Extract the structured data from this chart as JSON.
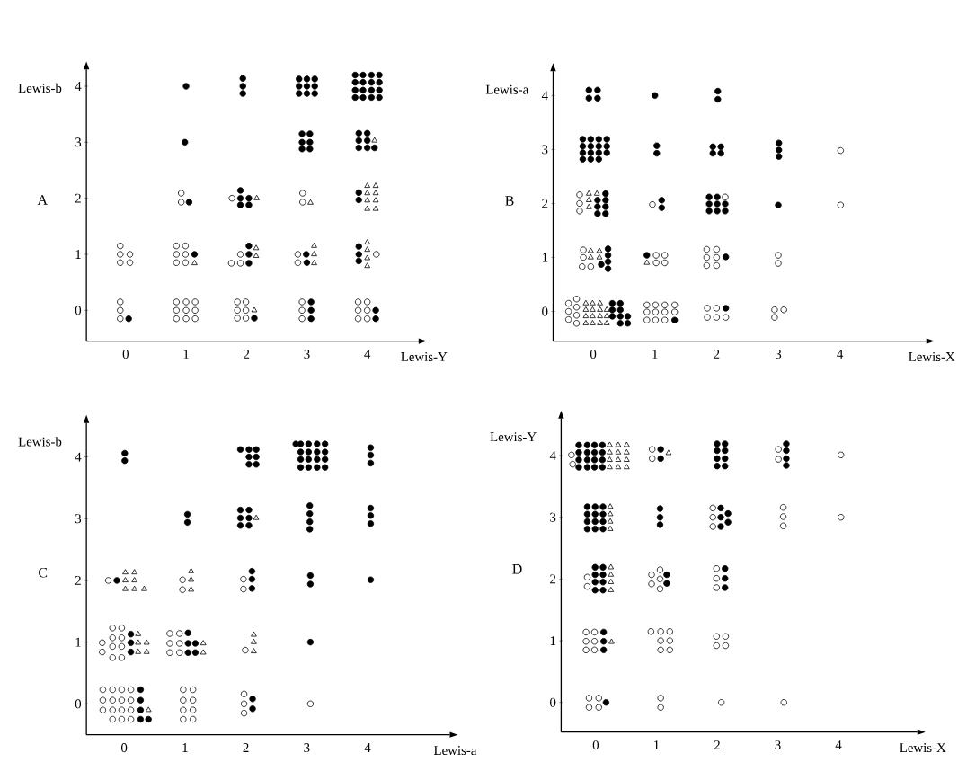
{
  "chart_data": [
    {
      "type": "scatter",
      "xlabel": "Lewis-Y",
      "ylabel": "Lewis-b",
      "annotations": [
        "A"
      ],
      "xlim": [
        -0.65,
        4.85
      ],
      "ylim": [
        -0.55,
        4.3
      ],
      "xticks": [
        0,
        1,
        2,
        3,
        4
      ],
      "yticks": [
        0,
        1,
        2,
        3,
        4
      ],
      "series": [
        {
          "marker": "circle",
          "color": "#ffffff",
          "x": [
            -0.09,
            -0.09,
            -0.09,
            -0.09,
            -0.09,
            0.07,
            -0.09,
            0.07,
            0.84,
            1,
            1.15,
            0.84,
            1,
            1.15,
            0.84,
            1,
            1.15,
            0.84,
            0.99,
            0.84,
            0.99,
            0.84,
            0.99,
            0.92,
            0.92,
            1.85,
            1.99,
            1.85,
            1.99,
            1.85,
            1.99,
            1.9,
            1.75,
            1.9,
            1.76,
            2.92,
            2.92,
            2.92,
            2.85,
            2.85,
            2.93,
            2.93,
            3.85,
            4,
            3.85,
            4,
            3.85,
            4,
            4.15
          ],
          "values": [
            0.15,
            0,
            -0.15,
            1.15,
            1,
            1,
            0.85,
            0.85,
            0.15,
            0.15,
            0.15,
            0,
            0,
            0,
            -0.15,
            -0.15,
            -0.15,
            1.15,
            1.15,
            1,
            1,
            0.85,
            0.85,
            2.09,
            1.93,
            0.15,
            0.15,
            0,
            0,
            -0.14,
            -0.14,
            1,
            0.84,
            0.84,
            2,
            0.15,
            0,
            -0.15,
            1,
            0.85,
            2.09,
            1.93,
            0.15,
            0.15,
            0,
            0,
            -0.15,
            -0.15,
            1
          ]
        },
        {
          "marker": "circle",
          "color": "#000000",
          "x": [
            0.05,
            1.14,
            1.05,
            0.98,
            1,
            2.13,
            2.04,
            2.04,
            2.04,
            1.9,
            1.9,
            2.04,
            1.9,
            2.04,
            1.94,
            1.94,
            1.94,
            3.07,
            3.07,
            3.07,
            2.99,
            3,
            2.92,
            3.05,
            2.92,
            3.05,
            2.92,
            3.05,
            2.87,
            3,
            3.13,
            2.87,
            3,
            3.13,
            2.87,
            3,
            3.13,
            4.14,
            4.14,
            3.86,
            3.86,
            3.86,
            3.86,
            3.86,
            3.86,
            4,
            3.86,
            4,
            3.86,
            4,
            4.12,
            3.8,
            3.93,
            4.07,
            4.2,
            3.8,
            3.93,
            4.07,
            4.2,
            3.8,
            3.93,
            4.07,
            4.2,
            3.8,
            3.93,
            4.07,
            4.2
          ],
          "values": [
            -0.15,
            1,
            1.93,
            3,
            4,
            -0.14,
            1.15,
            1,
            0.84,
            2.14,
            2,
            2,
            1.88,
            1.88,
            4.14,
            4,
            3.87,
            0.15,
            0,
            -0.15,
            1,
            0.85,
            3.15,
            3.15,
            3,
            3,
            2.88,
            2.88,
            4.13,
            4.13,
            4.13,
            4,
            4,
            4,
            3.87,
            3.87,
            3.87,
            0,
            -0.15,
            1.14,
            1,
            0.88,
            2.1,
            1.97,
            3.16,
            3.16,
            3.03,
            3.03,
            2.9,
            2.9,
            2.9,
            4.2,
            4.2,
            4.2,
            4.2,
            4.07,
            4.07,
            4.07,
            4.07,
            3.93,
            3.93,
            3.93,
            3.93,
            3.8,
            3.8,
            3.8,
            3.8
          ]
        },
        {
          "marker": "triangle",
          "color": "#ffffff",
          "x": [
            1.14,
            2.13,
            2.16,
            2.16,
            2.17,
            3.12,
            3.12,
            3.12,
            3.06,
            4,
            4,
            4,
            4,
            4,
            4.14,
            4,
            4.14,
            4,
            4.14,
            4,
            4.14,
            4.12
          ],
          "values": [
            0.84,
            0,
            1.11,
            0.97,
            2,
            1.15,
            1,
            0.84,
            1.92,
            1.21,
            1.08,
            0.93,
            0.79,
            2.22,
            2.22,
            2.09,
            2.09,
            1.96,
            1.96,
            1.81,
            1.81,
            3.03
          ]
        }
      ]
    },
    {
      "type": "scatter",
      "xlabel": "Lewis-X",
      "ylabel": "Lewis-a",
      "annotations": [
        "B"
      ],
      "xlim": [
        -0.65,
        5.4
      ],
      "ylim": [
        -0.55,
        4.45
      ],
      "xticks": [
        0,
        1,
        2,
        3,
        4
      ],
      "yticks": [
        0,
        1,
        2,
        3,
        4
      ],
      "series": [
        {
          "marker": "circle",
          "color": "#ffffff",
          "x": [
            -0.4,
            -0.27,
            -0.4,
            -0.27,
            -0.4,
            -0.27,
            -0.27,
            0.87,
            1.01,
            1.16,
            1.32,
            0.87,
            1.01,
            1.16,
            1.32,
            0.87,
            1.01,
            1.16,
            1.85,
            2,
            1.85,
            2,
            2.15,
            2.94,
            2.94,
            3.09,
            -0.16,
            -0.16,
            -0.18,
            -0.04,
            1.02,
            1.16,
            1.02,
            1.16,
            1.84,
            2,
            1.84,
            2,
            1.84,
            2,
            3,
            3,
            -0.22,
            -0.22,
            -0.22,
            0.96,
            2.14,
            4.01,
            4.01
          ],
          "values": [
            0.15,
            0.23,
            0,
            0.08,
            -0.15,
            -0.07,
            -0.22,
            0.12,
            0.12,
            0.12,
            0.12,
            -0.01,
            -0.01,
            -0.01,
            -0.01,
            -0.16,
            -0.16,
            -0.16,
            0.06,
            0.06,
            -0.11,
            -0.11,
            -0.11,
            -0.11,
            0.03,
            0.03,
            1.14,
            1,
            0.83,
            0.83,
            1.04,
            1.04,
            0.9,
            0.9,
            1.15,
            1.15,
            1,
            1,
            0.85,
            0.85,
            1.04,
            0.89,
            2.16,
            2,
            1.86,
            1.98,
            2.12,
            1.97,
            2.98
          ]
        },
        {
          "marker": "circle",
          "color": "#000000",
          "x": [
            0.31,
            0.44,
            0.31,
            0.44,
            0.31,
            0.44,
            0.56,
            0.44,
            0.56,
            1.32,
            2.15,
            0.24,
            0.24,
            0.13,
            0.24,
            0.24,
            0.87,
            2.15,
            0.2,
            0.07,
            0.2,
            0.07,
            0.2,
            0.07,
            0.2,
            1.11,
            1.11,
            1.88,
            2.01,
            1.88,
            2.01,
            2.14,
            1.88,
            2.01,
            2.14,
            3,
            -0.17,
            -0.04,
            0.09,
            0.22,
            -0.17,
            -0.04,
            0.09,
            0.22,
            -0.17,
            -0.04,
            0.09,
            0.22,
            -0.17,
            -0.04,
            0.09,
            1.03,
            1.03,
            1.94,
            2.07,
            1.94,
            2.07,
            3.01,
            3.01,
            3.01,
            -0.07,
            0.07,
            -0.07,
            0.07,
            1,
            2.02,
            2.02
          ],
          "values": [
            0.15,
            0.15,
            0.03,
            0.03,
            -0.09,
            -0.09,
            -0.09,
            -0.22,
            -0.22,
            -0.16,
            0.06,
            1.16,
            1.04,
            0.87,
            0.92,
            0.79,
            1.04,
            1.01,
            2.18,
            2.06,
            2.06,
            1.94,
            1.94,
            1.81,
            1.81,
            2.06,
            1.92,
            2.12,
            2.12,
            1.99,
            1.99,
            1.99,
            1.86,
            1.86,
            1.86,
            1.97,
            3.19,
            3.19,
            3.19,
            3.19,
            3.06,
            3.06,
            3.06,
            3.06,
            2.94,
            2.94,
            2.94,
            2.94,
            2.82,
            2.82,
            2.82,
            3.07,
            2.93,
            3.05,
            3.05,
            2.93,
            2.93,
            3.12,
            2.99,
            2.87,
            4.1,
            4.1,
            3.95,
            3.95,
            4,
            4.08,
            3.93
          ]
        },
        {
          "marker": "triangle",
          "color": "#ffffff",
          "x": [
            -0.12,
            -0.01,
            0.11,
            -0.12,
            -0.01,
            0.11,
            0.22,
            -0.12,
            -0.01,
            0.11,
            0.22,
            -0.12,
            -0.01,
            0.11,
            0.22,
            -0.04,
            0.1,
            -0.04,
            0.1,
            0.87,
            -0.07,
            0.06,
            -0.07,
            -0.07
          ],
          "values": [
            0.15,
            0.15,
            0.15,
            0.03,
            0.03,
            0.03,
            0.03,
            -0.09,
            -0.09,
            -0.09,
            -0.09,
            -0.22,
            -0.22,
            -0.22,
            -0.22,
            1.12,
            1.12,
            1,
            1,
            0.9,
            2.18,
            2.18,
            2.06,
            1.93
          ]
        }
      ]
    },
    {
      "type": "scatter",
      "xlabel": "Lewis-a",
      "ylabel": "Lewis-b",
      "annotations": [
        "C"
      ],
      "xlim": [
        -0.62,
        5.35
      ],
      "ylim": [
        -0.5,
        4.55
      ],
      "xticks": [
        0,
        1,
        2,
        3,
        4
      ],
      "yticks": [
        0,
        1,
        2,
        3,
        4
      ],
      "series": [
        {
          "marker": "circle",
          "color": "#ffffff",
          "x": [
            -0.35,
            -0.19,
            -0.04,
            0.11,
            -0.35,
            -0.19,
            -0.04,
            0.11,
            -0.35,
            -0.19,
            -0.04,
            0.11,
            -0.19,
            -0.04,
            0.11,
            0.97,
            1.13,
            0.97,
            1.13,
            0.97,
            1.13,
            0.97,
            1.13,
            1.97,
            1.97,
            1.97,
            3.06,
            -0.19,
            -0.04,
            -0.19,
            -0.04,
            -0.36,
            -0.19,
            -0.04,
            -0.36,
            -0.19,
            -0.04,
            0.75,
            0.91,
            0.75,
            0.91,
            0.75,
            0.91,
            1.99,
            -0.26,
            0.96,
            0.96,
            1.96,
            1.96
          ],
          "values": [
            0.23,
            0.23,
            0.23,
            0.23,
            0.06,
            0.06,
            0.06,
            0.06,
            -0.1,
            -0.1,
            -0.1,
            -0.1,
            -0.25,
            -0.25,
            -0.25,
            0.23,
            0.23,
            0.06,
            0.06,
            -0.1,
            -0.1,
            -0.25,
            -0.25,
            0.16,
            0,
            -0.15,
            0,
            1.23,
            1.23,
            1.07,
            1.07,
            0.99,
            0.93,
            0.93,
            0.84,
            0.75,
            0.75,
            1.14,
            1.14,
            0.98,
            0.98,
            0.83,
            0.83,
            0.87,
            2,
            2.01,
            1.85,
            2.02,
            1.86
          ]
        },
        {
          "marker": "circle",
          "color": "#000000",
          "x": [
            0.27,
            0.27,
            0.27,
            0.27,
            0.4,
            2.11,
            2.11,
            0.11,
            0.11,
            0.11,
            1.05,
            1.05,
            1.17,
            1.05,
            1.17,
            3.06,
            -0.12,
            2.1,
            2.1,
            2.1,
            3.06,
            3.06,
            4.05,
            1.04,
            1.04,
            1.91,
            2.05,
            1.91,
            2.05,
            1.91,
            2.05,
            3.05,
            3.05,
            3.05,
            3.05,
            4.05,
            4.05,
            4.05,
            0.01,
            0.01,
            1.91,
            2.05,
            2.17,
            2.05,
            2.17,
            2.05,
            2.17,
            2.82,
            2.9,
            3.03,
            3.17,
            3.3,
            2.9,
            3.03,
            3.17,
            3.3,
            2.9,
            3.03,
            3.17,
            3.3,
            2.9,
            3.03,
            3.17,
            3.3,
            4.05,
            4.05,
            4.05
          ],
          "values": [
            0.23,
            0.06,
            -0.1,
            -0.25,
            -0.25,
            0.08,
            -0.08,
            1.13,
            0.99,
            0.84,
            1.15,
            0.98,
            0.98,
            0.83,
            0.83,
            1,
            2,
            2.15,
            2.02,
            1.87,
            2.08,
            1.94,
            2.01,
            3.07,
            2.94,
            3.14,
            3.14,
            3.01,
            3.01,
            2.89,
            2.89,
            3.21,
            3.08,
            2.95,
            2.83,
            3.17,
            3.05,
            2.92,
            4.06,
            3.94,
            4.12,
            4.12,
            4.12,
            4,
            4,
            3.88,
            3.88,
            4.21,
            4.21,
            4.21,
            4.21,
            4.21,
            4.08,
            4.08,
            4.08,
            4.08,
            3.96,
            3.96,
            3.96,
            3.96,
            3.83,
            3.83,
            3.83,
            3.83,
            4.15,
            4.03,
            3.9
          ]
        },
        {
          "marker": "triangle",
          "color": "#ffffff",
          "x": [
            0.4,
            0.23,
            0.23,
            0.37,
            0.23,
            0.37,
            1.3,
            1.3,
            2.13,
            2.13,
            2.13,
            0.02,
            0.17,
            0.02,
            0.17,
            0.02,
            0.17,
            0.33,
            1.1,
            1.1,
            1.1,
            2.17
          ],
          "values": [
            -0.1,
            1.13,
            0.99,
            0.99,
            0.84,
            0.84,
            0.98,
            0.83,
            1.12,
            1,
            0.85,
            2.13,
            2.13,
            2,
            2,
            1.86,
            1.86,
            1.86,
            2.15,
            2.01,
            1.85,
            3.01
          ]
        }
      ]
    },
    {
      "type": "scatter",
      "xlabel": "Lewis-X",
      "ylabel": "Lewis-Y",
      "annotations": [
        "D"
      ],
      "xlim": [
        -0.57,
        5.3
      ],
      "ylim": [
        -0.48,
        4.6
      ],
      "xticks": [
        0,
        1,
        2,
        3,
        4
      ],
      "yticks": [
        0,
        1,
        2,
        3,
        4
      ],
      "series": [
        {
          "marker": "circle",
          "color": "#ffffff",
          "x": [
            -0.11,
            0.05,
            -0.11,
            0.05,
            1.07,
            1.07,
            2.07,
            3.1,
            -0.16,
            -0.02,
            -0.16,
            -0.02,
            -0.16,
            -0.02,
            0.91,
            1.07,
            1.22,
            1.07,
            1.22,
            1.07,
            1.22,
            1.99,
            2.14,
            1.99,
            2.14,
            -0.14,
            -0.14,
            0.92,
            1.06,
            1.06,
            0.92,
            1.06,
            1.99,
            1.99,
            1.99,
            1.93,
            1.93,
            1.93,
            3.09,
            3.09,
            3.09,
            4.04,
            -0.4,
            -0.38,
            0.93,
            0.93,
            3.01,
            3.01,
            4.04
          ],
          "values": [
            0.07,
            0.07,
            -0.08,
            -0.08,
            0.07,
            -0.08,
            0,
            0,
            1.14,
            1.14,
            0.99,
            0.99,
            0.85,
            0.85,
            1.15,
            1.15,
            1.15,
            1,
            1,
            0.85,
            0.85,
            1.07,
            1.07,
            0.92,
            0.92,
            2.03,
            1.88,
            2.07,
            2.15,
            2,
            1.92,
            1.84,
            2.17,
            2.01,
            1.86,
            3.15,
            3,
            2.85,
            3.16,
            3.01,
            2.86,
            3,
            4.01,
            3.86,
            4.1,
            3.95,
            4.1,
            3.94,
            4.01
          ]
        },
        {
          "marker": "circle",
          "color": "#000000",
          "x": [
            0.17,
            0.13,
            0.13,
            0.13,
            1.17,
            1.17,
            -0.01,
            0.12,
            -0.01,
            0.12,
            -0.01,
            0.12,
            -0.01,
            0.12,
            2.13,
            2.13,
            2.13,
            -0.14,
            -0.01,
            0.12,
            -0.14,
            -0.01,
            0.12,
            -0.14,
            -0.01,
            0.12,
            -0.14,
            -0.01,
            0.12,
            1.06,
            1.06,
            1.06,
            2.06,
            2.06,
            2.18,
            2.18,
            2.06,
            -0.28,
            -0.14,
            -0.02,
            0.11,
            -0.28,
            -0.14,
            -0.02,
            0.11,
            -0.28,
            -0.14,
            -0.02,
            0.11,
            -0.28,
            -0.14,
            -0.02,
            0.11,
            1.07,
            1.07,
            2,
            2.13,
            2,
            2.13,
            2,
            2.13,
            2,
            2.13,
            3.14,
            3.14,
            3.14,
            3.14
          ],
          "values": [
            0,
            1.14,
            0.99,
            0.85,
            2.07,
            1.93,
            2.19,
            2.19,
            2.07,
            2.07,
            1.95,
            1.95,
            1.82,
            1.82,
            2.17,
            2.01,
            1.86,
            3.17,
            3.17,
            3.17,
            3.05,
            3.05,
            3.05,
            2.93,
            2.93,
            2.93,
            2.81,
            2.81,
            2.81,
            3.14,
            3,
            2.88,
            3.15,
            3,
            3.06,
            2.92,
            2.85,
            4.17,
            4.17,
            4.17,
            4.17,
            4.05,
            4.05,
            4.05,
            4.05,
            3.93,
            3.93,
            3.93,
            3.93,
            3.81,
            3.81,
            3.81,
            3.81,
            4.1,
            3.95,
            4.19,
            4.19,
            4.08,
            4.08,
            3.95,
            3.95,
            3.83,
            3.83,
            4.19,
            4.08,
            3.95,
            3.84
          ]
        },
        {
          "marker": "triangle",
          "color": "#ffffff",
          "x": [
            0.26,
            0.25,
            0.25,
            0.25,
            0.25,
            0.24,
            0.24,
            0.24,
            0.24,
            0.23,
            0.37,
            0.51,
            0.23,
            0.37,
            0.51,
            0.23,
            0.37,
            0.51,
            0.23,
            0.37,
            0.51,
            1.2
          ],
          "values": [
            0.98,
            2.19,
            2.07,
            1.95,
            1.82,
            3.17,
            3.05,
            2.93,
            2.81,
            4.17,
            4.17,
            4.17,
            4.05,
            4.05,
            4.05,
            3.93,
            3.93,
            3.93,
            3.81,
            3.81,
            3.81,
            4.04
          ]
        }
      ]
    }
  ]
}
